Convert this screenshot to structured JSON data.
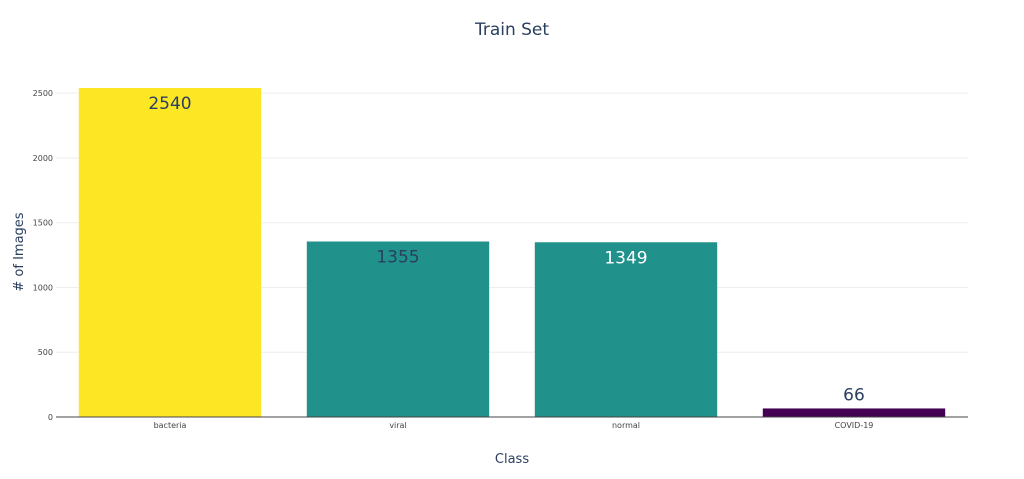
{
  "chart_data": {
    "type": "bar",
    "title": "Train Set",
    "xlabel": "Class",
    "ylabel": "# of Images",
    "categories": [
      "bacteria",
      "viral",
      "normal",
      "COVID-19"
    ],
    "values": [
      2540,
      1355,
      1349,
      66
    ],
    "data_labels": [
      "2540",
      "1355",
      "1349",
      "66"
    ],
    "ylim": [
      0,
      2540
    ],
    "yticks": [
      0,
      500,
      1000,
      1500,
      2000,
      2500
    ],
    "ytick_labels": [
      "0",
      "500",
      "1000",
      "1500",
      "2000",
      "2500"
    ],
    "bar_colors": [
      "#fde725",
      "#21918c",
      "#21918c",
      "#440154"
    ],
    "grid": true,
    "legend": "none"
  }
}
